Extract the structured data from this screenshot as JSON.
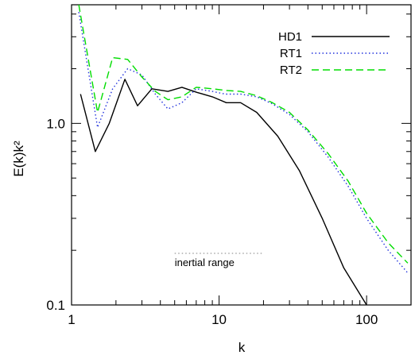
{
  "chart_data": {
    "type": "line",
    "title": "",
    "xlabel": "k",
    "ylabel": "E(k)k²",
    "xscale": "log",
    "yscale": "log",
    "xlim": [
      1,
      200
    ],
    "ylim": [
      0.1,
      4.5
    ],
    "x_ticks": [
      1,
      10,
      100
    ],
    "x_tick_labels": [
      "1",
      "10",
      "100"
    ],
    "y_ticks": [
      0.1,
      1.0
    ],
    "y_tick_labels": [
      "0.1",
      "1.0"
    ],
    "grid": false,
    "legend_position": "top-right",
    "series": [
      {
        "name": "HD1",
        "color": "#000000",
        "style": "solid",
        "x": [
          1.15,
          1.45,
          1.8,
          2.3,
          2.8,
          3.5,
          4.5,
          5.6,
          7.1,
          9,
          11.2,
          14,
          18,
          25,
          35,
          50,
          70,
          100
        ],
        "y": [
          1.45,
          0.7,
          1.0,
          1.75,
          1.25,
          1.55,
          1.5,
          1.58,
          1.48,
          1.4,
          1.3,
          1.3,
          1.15,
          0.85,
          0.55,
          0.3,
          0.16,
          0.1
        ]
      },
      {
        "name": "RT1",
        "color": "#2233dd",
        "style": "dotted",
        "x": [
          1.12,
          1.5,
          1.9,
          2.4,
          3,
          3.7,
          4.5,
          5.6,
          7,
          9,
          11,
          14,
          18,
          23,
          30,
          40,
          55,
          75,
          100,
          140,
          190
        ],
        "y": [
          4.1,
          0.95,
          1.55,
          2.0,
          1.85,
          1.45,
          1.2,
          1.3,
          1.55,
          1.5,
          1.45,
          1.45,
          1.4,
          1.28,
          1.12,
          0.9,
          0.65,
          0.45,
          0.3,
          0.2,
          0.15
        ]
      },
      {
        "name": "RT2",
        "color": "#00dd00",
        "style": "dashed",
        "x": [
          1.12,
          1.5,
          1.9,
          2.4,
          3,
          3.7,
          4.5,
          5.6,
          7,
          9,
          11,
          14,
          18,
          23,
          30,
          40,
          55,
          75,
          100,
          140,
          190
        ],
        "y": [
          4.5,
          1.15,
          2.3,
          2.25,
          1.8,
          1.5,
          1.35,
          1.4,
          1.58,
          1.55,
          1.52,
          1.5,
          1.42,
          1.3,
          1.15,
          0.92,
          0.68,
          0.48,
          0.32,
          0.22,
          0.17
        ]
      }
    ],
    "annotations": [
      {
        "text": "inertial range",
        "x_range": [
          5,
          20
        ],
        "y": 0.2,
        "style": "dotted",
        "color": "#999999"
      }
    ]
  }
}
